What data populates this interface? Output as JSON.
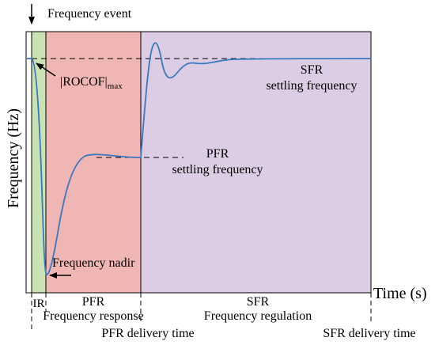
{
  "colors": {
    "ir_region": "#c9e3b4",
    "pfr_region": "#efb6b3",
    "sfr_region": "#dccde4",
    "curve": "#3a78c0",
    "frame": "#000000"
  },
  "labels": {
    "event": "Frequency event",
    "rocof_main": "|ROCOF|",
    "rocof_sub": "max",
    "sfr_settling_line1": "SFR",
    "sfr_settling_line2": "settling frequency",
    "pfr_settling_line1": "PFR",
    "pfr_settling_line2": "settling frequency",
    "nadir": "Frequency nadir",
    "y_axis": "Frequency  (Hz)",
    "x_axis": "Time (s)",
    "ir": "IR",
    "pfr_phase_line1": "PFR",
    "pfr_phase_line2": "Frequency response",
    "sfr_phase_line1": "SFR",
    "sfr_phase_line2": "Frequency regulation",
    "pfr_delivery": "PFR delivery time",
    "sfr_delivery": "SFR delivery time"
  }
}
